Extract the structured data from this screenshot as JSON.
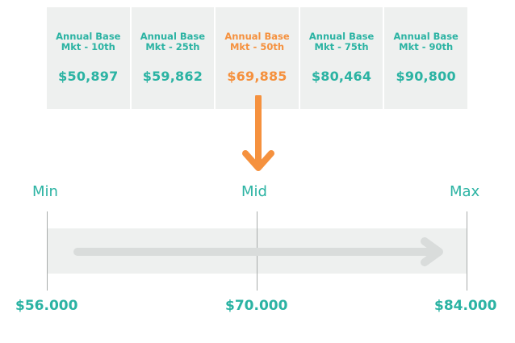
{
  "colors": {
    "teal": "#2bb3a3",
    "orange": "#f5913e",
    "panel": "#eef0ef",
    "line": "#a8acab"
  },
  "percentiles": [
    {
      "label": "Annual Base\nMkt - 10th",
      "value": "$50,897",
      "highlight": false
    },
    {
      "label": "Annual Base\nMkt - 25th",
      "value": "$59,862",
      "highlight": false
    },
    {
      "label": "Annual Base\nMkt - 50th",
      "value": "$69,885",
      "highlight": true
    },
    {
      "label": "Annual Base\nMkt - 75th",
      "value": "$80,464",
      "highlight": false
    },
    {
      "label": "Annual Base\nMkt - 90th",
      "value": "$90,800",
      "highlight": false
    }
  ],
  "range": {
    "min_label": "Min",
    "mid_label": "Mid",
    "max_label": "Max",
    "min_value": "$56.000",
    "mid_value": "$70.000",
    "max_value": "$84.000"
  },
  "icons": {
    "down_arrow": "arrow-down-icon",
    "range_arrow": "arrow-right-icon"
  }
}
